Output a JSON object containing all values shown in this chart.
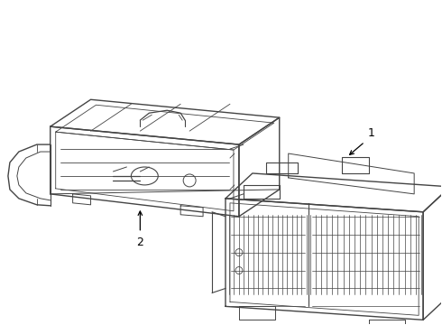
{
  "background_color": "#ffffff",
  "line_color": "#444444",
  "label_color": "#000000",
  "label_1": "1",
  "label_2": "2",
  "figsize": [
    4.9,
    3.6
  ],
  "dpi": 100
}
